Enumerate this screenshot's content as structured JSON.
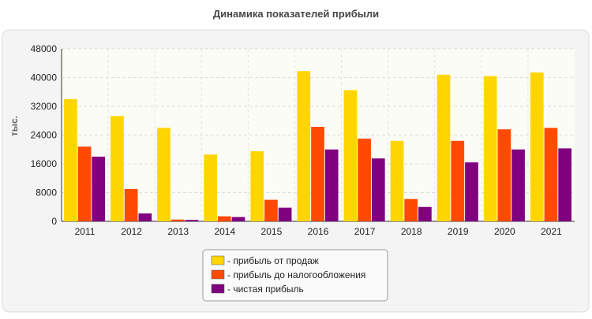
{
  "chart_data": {
    "type": "bar",
    "title": "Динамика показателей прибыли",
    "y_label": "тыс.",
    "categories": [
      "2011",
      "2012",
      "2013",
      "2014",
      "2015",
      "2016",
      "2017",
      "2018",
      "2019",
      "2020",
      "2021"
    ],
    "series": [
      {
        "name": "- прибыль от продаж",
        "color": "#ffd500",
        "values": [
          34000,
          29300,
          26000,
          18600,
          19500,
          41800,
          36500,
          22400,
          40800,
          40400,
          41400
        ]
      },
      {
        "name": "- прибыль до налогообложения",
        "color": "#ff4a00",
        "values": [
          20800,
          9000,
          500,
          1400,
          6000,
          26300,
          23000,
          6200,
          22400,
          25600,
          26000
        ]
      },
      {
        "name": "- чистая прибыль",
        "color": "#800080",
        "values": [
          18000,
          2200,
          400,
          1200,
          3800,
          20000,
          17500,
          4000,
          16400,
          20000,
          20300
        ]
      }
    ],
    "ylim": [
      0,
      48000
    ],
    "yticks": [
      0,
      8000,
      16000,
      24000,
      32000,
      40000,
      48000
    ],
    "grid": true
  }
}
